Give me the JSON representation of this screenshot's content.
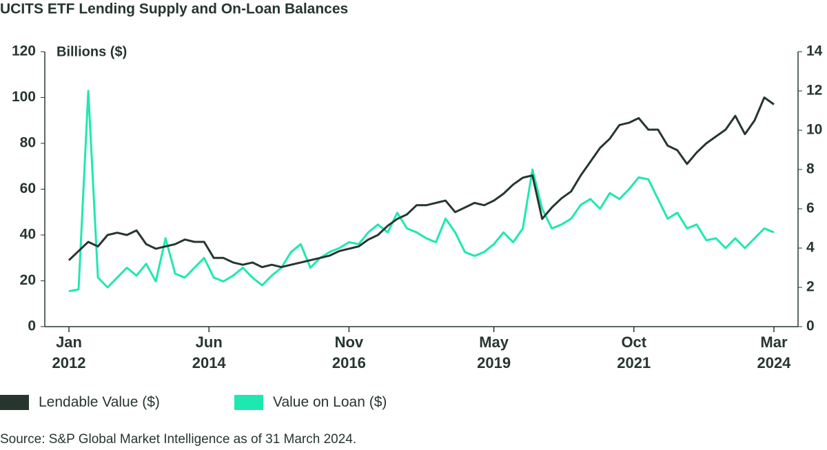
{
  "chart_data": {
    "type": "line",
    "title": "UCITS ETF Lending Supply and On-Loan Balances",
    "y_label": "Billions ($)",
    "source": "Source: S&P Global Market Intelligence as of 31 March 2024.",
    "x": [
      "2012-01",
      "2012-03",
      "2012-05",
      "2012-07",
      "2012-09",
      "2012-11",
      "2013-01",
      "2013-03",
      "2013-05",
      "2013-07",
      "2013-09",
      "2013-11",
      "2014-01",
      "2014-03",
      "2014-05",
      "2014-07",
      "2014-09",
      "2014-11",
      "2015-01",
      "2015-03",
      "2015-05",
      "2015-07",
      "2015-09",
      "2015-11",
      "2016-01",
      "2016-03",
      "2016-05",
      "2016-07",
      "2016-09",
      "2016-11",
      "2017-01",
      "2017-03",
      "2017-05",
      "2017-07",
      "2017-09",
      "2017-11",
      "2018-01",
      "2018-03",
      "2018-05",
      "2018-07",
      "2018-09",
      "2018-11",
      "2019-01",
      "2019-03",
      "2019-05",
      "2019-07",
      "2019-09",
      "2019-11",
      "2020-01",
      "2020-03",
      "2020-05",
      "2020-07",
      "2020-09",
      "2020-11",
      "2021-01",
      "2021-03",
      "2021-05",
      "2021-07",
      "2021-09",
      "2021-11",
      "2022-01",
      "2022-03",
      "2022-05",
      "2022-07",
      "2022-09",
      "2022-11",
      "2023-01",
      "2023-03",
      "2023-05",
      "2023-07",
      "2023-09",
      "2023-11",
      "2024-01",
      "2024-03"
    ],
    "series": [
      {
        "name": "Lendable Value ($)",
        "color": "#26362e",
        "values": [
          29,
          33,
          37,
          35,
          40,
          41,
          40,
          42,
          36,
          34,
          35,
          36,
          38,
          37,
          37,
          30,
          30,
          28,
          27,
          28,
          26,
          27,
          26,
          27,
          28,
          29,
          30,
          31,
          33,
          34,
          35,
          38,
          40,
          44,
          47,
          49,
          53,
          53,
          54,
          55,
          50,
          52,
          54,
          53,
          55,
          58,
          62,
          65,
          66,
          47,
          52,
          56,
          59,
          66,
          72,
          78,
          82,
          88,
          89,
          91,
          86,
          86,
          79,
          77,
          71,
          76,
          80,
          83,
          86,
          92,
          84,
          90,
          100,
          97
        ]
      },
      {
        "name": "Value on Loan ($)",
        "color": "#1ee8b0",
        "axis": "y2",
        "values": [
          1.8,
          1.9,
          12,
          2.5,
          2.0,
          2.5,
          3.0,
          2.6,
          3.2,
          2.3,
          4.5,
          2.7,
          2.5,
          3.0,
          3.5,
          2.5,
          2.3,
          2.6,
          3.0,
          2.5,
          2.1,
          2.6,
          3.0,
          3.8,
          4.2,
          3.0,
          3.5,
          3.8,
          4.0,
          4.3,
          4.2,
          4.8,
          5.2,
          4.8,
          5.8,
          5.0,
          4.8,
          4.5,
          4.3,
          5.5,
          4.8,
          3.8,
          3.6,
          3.8,
          4.2,
          4.8,
          4.3,
          5.0,
          8.0,
          6.0,
          5.0,
          5.2,
          5.5,
          6.2,
          6.5,
          6.0,
          6.8,
          6.5,
          7.0,
          7.6,
          7.5,
          6.5,
          5.5,
          5.8,
          5.0,
          5.2,
          4.4,
          4.5,
          4.0,
          4.5,
          4.0,
          4.5,
          5.0,
          4.8
        ]
      }
    ],
    "xlim": [
      "2011-08",
      "2024-08"
    ],
    "xticks": [
      {
        "value": "2012-01",
        "label": "Jan 2012"
      },
      {
        "value": "2014-06",
        "label": "Jun 2014"
      },
      {
        "value": "2016-11",
        "label": "Nov 2016"
      },
      {
        "value": "2019-05",
        "label": "May 2019"
      },
      {
        "value": "2021-10",
        "label": "Oct 2021"
      },
      {
        "value": "2024-03",
        "label": "Mar 2024"
      }
    ],
    "ylim": [
      0,
      120
    ],
    "yticks": [
      0,
      20,
      40,
      60,
      80,
      100,
      120
    ],
    "y2lim": [
      0,
      14
    ],
    "y2ticks": [
      0,
      2,
      4,
      6,
      8,
      10,
      12,
      14
    ]
  }
}
